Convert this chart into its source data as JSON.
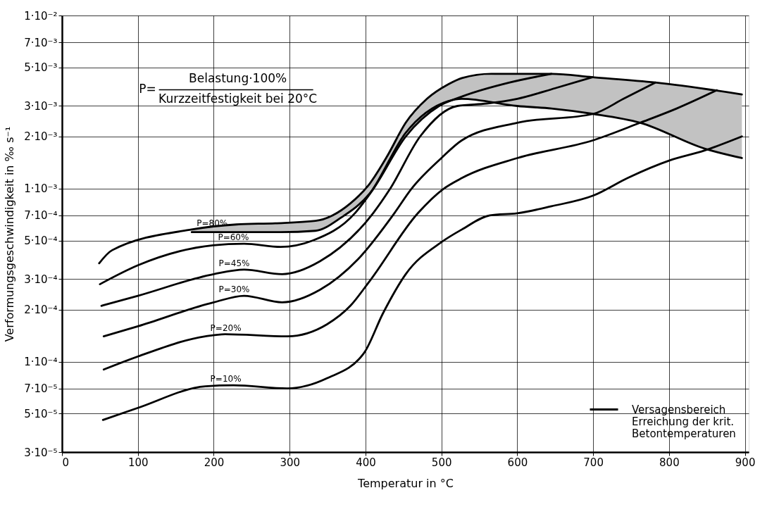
{
  "chart_data": {
    "type": "line",
    "xlabel": "Temperatur  in °C",
    "ylabel": "Verformungsgeschwindigkeit in  ‰ s⁻¹",
    "annotations": [
      "P=",
      "Belastung·100%",
      "Kurzzeitfestigkeit bei 20°C"
    ],
    "xlim": [
      0,
      905
    ],
    "xticks": [
      0,
      100,
      200,
      300,
      400,
      500,
      600,
      700,
      800,
      900
    ],
    "ylim": [
      3e-05,
      0.01
    ],
    "log": true,
    "yticks": [
      {
        "value": 3e-05,
        "label": "3·10⁻⁵"
      },
      {
        "value": 5e-05,
        "label": "5·10⁻⁵"
      },
      {
        "value": 7e-05,
        "label": "7·10⁻⁵"
      },
      {
        "value": 0.0001,
        "label": "1·10⁻⁴"
      },
      {
        "value": 0.0002,
        "label": "2·10⁻⁴"
      },
      {
        "value": 0.0003,
        "label": "3·10⁻⁴"
      },
      {
        "value": 0.0005,
        "label": "5·10⁻⁴"
      },
      {
        "value": 0.0007,
        "label": "7·10⁻⁴"
      },
      {
        "value": 0.001,
        "label": "1·10⁻³"
      },
      {
        "value": 0.002,
        "label": "2·10⁻³"
      },
      {
        "value": 0.003,
        "label": "3·10⁻³"
      },
      {
        "value": 0.005,
        "label": "5·10⁻³"
      },
      {
        "value": 0.007,
        "label": "7·10⁻³"
      },
      {
        "value": 0.01,
        "label": "1·10⁻²"
      }
    ],
    "grid": true,
    "legend": "bottom right",
    "marker": "none",
    "line_style": "solid",
    "series": [
      {
        "name": "Versagensbereich\nErreichung der krit.\nBetontemperaturen",
        "type": "line",
        "color": "#000000",
        "x": [
          171,
          230,
          288,
          334,
          368,
          405,
          453,
          509,
          527,
          600,
          645,
          700,
          762,
          847,
          896
        ],
        "values": [
          0.00056,
          0.00056,
          0.00056,
          0.00057,
          0.00068,
          0.00093,
          0.0021,
          0.0032,
          0.0033,
          0.003,
          0.0029,
          0.0027,
          0.0024,
          0.0017,
          0.0015
        ],
        "upper": [
          0.00058,
          0.00062,
          0.00063,
          0.00065,
          0.00076,
          0.00106,
          0.0024,
          0.004,
          0.00435,
          0.0046,
          0.0046,
          0.0044,
          0.00415,
          0.0038,
          0.0035
        ],
        "lower": [
          0.00056,
          0.00056,
          0.00056,
          0.00057,
          0.00068,
          0.00093,
          0.0021,
          0.0032,
          0.0033,
          0.003,
          0.0029,
          0.0027,
          0.0024,
          0.0017,
          0.0015
        ]
      },
      {
        "name": "P=80%",
        "color": "#000000",
        "x": [
          49,
          66,
          171,
          230,
          281,
          334,
          380,
          405,
          429,
          453,
          481,
          509,
          527,
          566,
          645,
          699,
          782,
          896
        ],
        "values": [
          0.00037,
          0.00044,
          0.00058,
          0.00062,
          0.00063,
          0.00065,
          0.00082,
          0.00106,
          0.00155,
          0.0024,
          0.0033,
          0.004,
          0.00435,
          0.0046,
          0.0046,
          0.0044,
          0.0041,
          0.0035
        ]
      },
      {
        "name": "P=60%",
        "color": "#000000",
        "x": [
          50,
          100,
          199,
          240,
          288,
          330,
          386,
          410,
          453,
          497,
          527,
          590,
          645
        ],
        "values": [
          0.00028,
          0.00036,
          0.00047,
          0.00048,
          0.00046,
          0.0005,
          0.00072,
          0.00099,
          0.002,
          0.003,
          0.0034,
          0.0041,
          0.0046
        ]
      },
      {
        "name": "P=45%",
        "color": "#000000",
        "x": [
          52,
          100,
          200,
          240,
          290,
          340,
          410,
          432,
          472,
          521,
          560,
          600,
          650,
          699
        ],
        "values": [
          0.00021,
          0.00024,
          0.00032,
          0.00034,
          0.00032,
          0.00038,
          0.00072,
          0.00099,
          0.002,
          0.003,
          0.0031,
          0.0033,
          0.0038,
          0.0044
        ]
      },
      {
        "name": "P=30%",
        "color": "#000000",
        "x": [
          55,
          100,
          200,
          240,
          290,
          340,
          390,
          438,
          460,
          500,
          527,
          600,
          700,
          740,
          782
        ],
        "values": [
          0.00014,
          0.00016,
          0.00022,
          0.00024,
          0.00022,
          0.00026,
          0.00039,
          0.00072,
          0.00099,
          0.0015,
          0.0019,
          0.0024,
          0.0027,
          0.0033,
          0.0041
        ]
      },
      {
        "name": "P=20%",
        "color": "#000000",
        "x": [
          55,
          100,
          189,
          215,
          297,
          349,
          380,
          405,
          469,
          502,
          527,
          600,
          700,
          762,
          810,
          863
        ],
        "values": [
          9e-05,
          0.000107,
          0.00014,
          0.000144,
          0.00014,
          0.000164,
          0.00021,
          0.00029,
          0.00072,
          0.00099,
          0.00115,
          0.0015,
          0.0019,
          0.0024,
          0.0029,
          0.0037
        ]
      },
      {
        "name": "P=10%",
        "color": "#000000",
        "x": [
          54,
          100,
          189,
          226,
          297,
          349,
          398,
          423,
          453,
          500,
          527,
          564,
          600,
          645,
          700,
          747,
          800,
          847,
          896
        ],
        "values": [
          4.6e-05,
          5.4e-05,
          7.2e-05,
          7.3e-05,
          7e-05,
          8e-05,
          0.000112,
          0.00019,
          0.00032,
          0.00049,
          0.00058,
          0.0007,
          0.00072,
          0.00079,
          0.00091,
          0.00116,
          0.00145,
          0.00166,
          0.002
        ]
      }
    ]
  }
}
